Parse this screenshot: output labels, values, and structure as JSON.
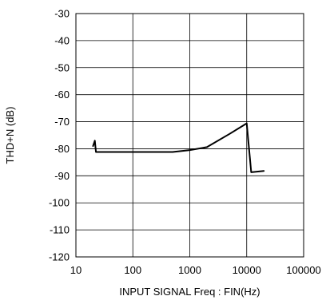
{
  "chart_data": {
    "type": "line",
    "xlabel": "INPUT SIGNAL Freq : FIN(Hz)",
    "ylabel": "THD+N (dB)",
    "xscale": "log",
    "xlim": [
      10,
      100000
    ],
    "ylim": [
      -120,
      -30
    ],
    "grid": true,
    "x_ticks": [
      10,
      100,
      1000,
      10000,
      100000
    ],
    "x_tick_labels": [
      "10",
      "100",
      "1000",
      "10000",
      "100000"
    ],
    "y_ticks": [
      -30,
      -40,
      -50,
      -60,
      -70,
      -80,
      -90,
      -100,
      -110,
      -120
    ],
    "y_tick_labels": [
      "-30",
      "-40",
      "-50",
      "-60",
      "-70",
      "-80",
      "-90",
      "-100",
      "-110",
      "-120"
    ],
    "series": [
      {
        "color": "#000000",
        "points": [
          [
            20,
            -79
          ],
          [
            21.5,
            -77
          ],
          [
            22.5,
            -81.2
          ],
          [
            50,
            -81.2
          ],
          [
            200,
            -81.2
          ],
          [
            500,
            -81.2
          ],
          [
            1000,
            -80.5
          ],
          [
            2000,
            -79.4
          ],
          [
            5000,
            -74.5
          ],
          [
            10000,
            -70.6
          ],
          [
            12000,
            -88.7
          ],
          [
            20000,
            -88.2
          ]
        ]
      }
    ]
  }
}
